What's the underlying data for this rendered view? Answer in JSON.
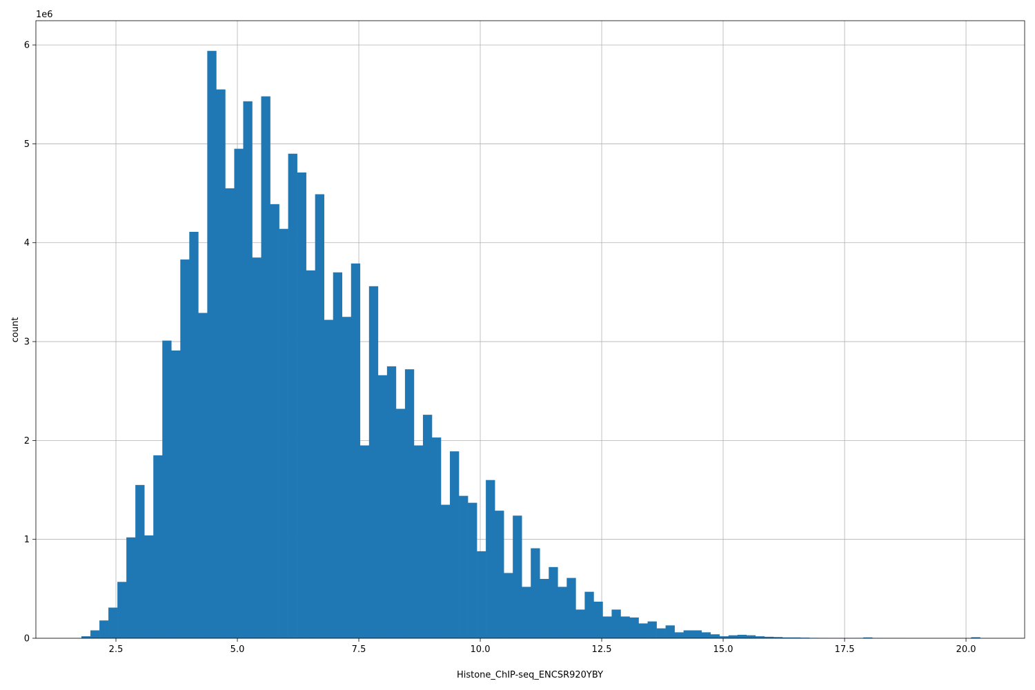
{
  "chart_data": {
    "type": "histogram",
    "xlabel": "Histone_ChIP-seq_ENCSR920YBY",
    "ylabel": "count",
    "y_offset_label": "1e6",
    "color": "#1f77b4",
    "grid": true,
    "bins": [
      1.79,
      1.975,
      2.16,
      2.345,
      2.53,
      2.715,
      2.9,
      3.085,
      3.27,
      3.455,
      3.64,
      3.825,
      4.01,
      4.195,
      4.38,
      4.565,
      4.75,
      4.935,
      5.12,
      5.305,
      5.49,
      5.675,
      5.86,
      6.045,
      6.23,
      6.415,
      6.6,
      6.785,
      6.97,
      7.155,
      7.34,
      7.525,
      7.71,
      7.895,
      8.08,
      8.265,
      8.45,
      8.635,
      8.82,
      9.005,
      9.19,
      9.375,
      9.56,
      9.745,
      9.93,
      10.115,
      10.3,
      10.485,
      10.67,
      10.855,
      11.04,
      11.225,
      11.41,
      11.595,
      11.78,
      11.965,
      12.15,
      12.335,
      12.52,
      12.705,
      12.89,
      13.075,
      13.26,
      13.445,
      13.63,
      13.815,
      14.0,
      14.185,
      14.37,
      14.555,
      14.74,
      14.925,
      15.11,
      15.295,
      15.48,
      15.665,
      15.85,
      16.035,
      16.22,
      16.405,
      16.59,
      16.775,
      16.96,
      17.145,
      17.33,
      17.515,
      17.7,
      17.885,
      18.07,
      18.255,
      18.44,
      18.625,
      18.81,
      18.995,
      19.18,
      19.365,
      19.55,
      19.735,
      19.92,
      20.105,
      20.29
    ],
    "counts": [
      0.02,
      0.08,
      0.18,
      0.31,
      0.57,
      1.02,
      1.55,
      1.04,
      1.85,
      3.01,
      2.91,
      3.83,
      4.11,
      3.29,
      5.94,
      5.55,
      4.55,
      4.95,
      5.43,
      3.85,
      5.48,
      4.39,
      4.14,
      4.9,
      4.71,
      3.72,
      4.49,
      3.22,
      3.7,
      3.25,
      3.79,
      1.95,
      3.56,
      2.66,
      2.75,
      2.32,
      2.72,
      1.95,
      2.26,
      2.03,
      1.35,
      1.89,
      1.44,
      1.37,
      0.88,
      1.6,
      1.29,
      0.66,
      1.24,
      0.52,
      0.91,
      0.6,
      0.72,
      0.52,
      0.61,
      0.29,
      0.47,
      0.37,
      0.22,
      0.29,
      0.22,
      0.21,
      0.15,
      0.17,
      0.1,
      0.13,
      0.06,
      0.08,
      0.08,
      0.06,
      0.04,
      0.02,
      0.03,
      0.035,
      0.03,
      0.02,
      0.015,
      0.012,
      0.008,
      0.008,
      0.006,
      0.004,
      0.003,
      0.002,
      0.002,
      0.002,
      0.003,
      0.008,
      0.002,
      0.001,
      0.001,
      0.001,
      0,
      0,
      0,
      0,
      0,
      0,
      0,
      0.01
    ],
    "xlim": [
      0.852,
      21.207
    ],
    "ylim": [
      0,
      6.245
    ],
    "xticks": [
      2.5,
      {
        "value": 5,
        "label": "5.0"
      },
      7.5,
      {
        "value": 10,
        "label": "10.0"
      },
      12.5,
      {
        "value": 15,
        "label": "15.0"
      },
      17.5,
      {
        "value": 20,
        "label": "20.0"
      }
    ],
    "yticks": [
      0,
      1,
      2,
      3,
      4,
      5,
      6
    ]
  }
}
